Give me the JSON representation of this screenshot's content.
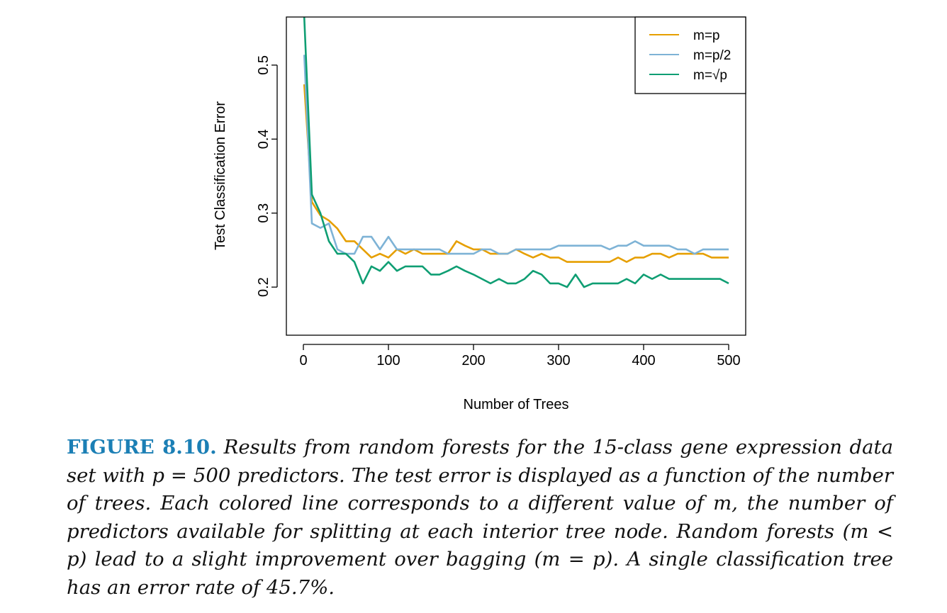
{
  "colors": {
    "m_eq_p": "#E69F00",
    "m_eq_p_half": "#7EB3D6",
    "m_eq_sqrt_p": "#0F9E73",
    "caption_label": "#1B7FB5"
  },
  "chart_data": {
    "type": "line",
    "title": "",
    "xlabel": "Number of Trees",
    "ylabel": "Test Classification Error",
    "xlim": [
      -20,
      520
    ],
    "ylim": [
      0.135,
      0.565
    ],
    "xticks": [
      0,
      100,
      200,
      300,
      400,
      500
    ],
    "yticks": [
      0.2,
      0.3,
      0.4,
      0.5
    ],
    "legend_position": "top-right",
    "grid": false,
    "x": [
      1,
      10,
      20,
      30,
      40,
      50,
      60,
      70,
      80,
      90,
      100,
      110,
      120,
      130,
      140,
      150,
      160,
      170,
      180,
      190,
      200,
      210,
      220,
      230,
      240,
      250,
      260,
      270,
      280,
      290,
      300,
      310,
      320,
      330,
      340,
      350,
      360,
      370,
      380,
      390,
      400,
      410,
      420,
      430,
      440,
      450,
      460,
      470,
      480,
      490,
      500
    ],
    "series": [
      {
        "name": "m=p",
        "color_key": "m_eq_p",
        "values": [
          0.474,
          0.315,
          0.297,
          0.29,
          0.279,
          0.262,
          0.262,
          0.251,
          0.24,
          0.245,
          0.24,
          0.251,
          0.245,
          0.251,
          0.245,
          0.245,
          0.245,
          0.245,
          0.262,
          0.256,
          0.251,
          0.251,
          0.245,
          0.245,
          0.245,
          0.251,
          0.245,
          0.24,
          0.245,
          0.24,
          0.24,
          0.234,
          0.234,
          0.234,
          0.234,
          0.234,
          0.234,
          0.24,
          0.234,
          0.24,
          0.24,
          0.245,
          0.245,
          0.24,
          0.245,
          0.245,
          0.245,
          0.245,
          0.24,
          0.24,
          0.24
        ]
      },
      {
        "name": "m=p/2",
        "color_key": "m_eq_p_half",
        "values": [
          0.514,
          0.286,
          0.28,
          0.286,
          0.251,
          0.245,
          0.245,
          0.268,
          0.268,
          0.251,
          0.268,
          0.251,
          0.251,
          0.251,
          0.251,
          0.251,
          0.251,
          0.245,
          0.245,
          0.245,
          0.245,
          0.251,
          0.251,
          0.245,
          0.245,
          0.251,
          0.251,
          0.251,
          0.251,
          0.251,
          0.256,
          0.256,
          0.256,
          0.256,
          0.256,
          0.256,
          0.251,
          0.256,
          0.256,
          0.262,
          0.256,
          0.256,
          0.256,
          0.256,
          0.251,
          0.251,
          0.245,
          0.251,
          0.251,
          0.251,
          0.251
        ]
      },
      {
        "name": "m=√p",
        "color_key": "m_eq_sqrt_p",
        "values": [
          0.565,
          0.325,
          0.3,
          0.262,
          0.245,
          0.245,
          0.234,
          0.205,
          0.228,
          0.222,
          0.234,
          0.222,
          0.228,
          0.228,
          0.228,
          0.217,
          0.217,
          0.222,
          0.228,
          0.222,
          0.217,
          0.211,
          0.205,
          0.211,
          0.205,
          0.205,
          0.211,
          0.222,
          0.217,
          0.205,
          0.205,
          0.2,
          0.217,
          0.2,
          0.205,
          0.205,
          0.205,
          0.205,
          0.211,
          0.205,
          0.217,
          0.211,
          0.217,
          0.211,
          0.211,
          0.211,
          0.211,
          0.211,
          0.211,
          0.211,
          0.205
        ]
      }
    ]
  },
  "caption": {
    "label": "FIGURE 8.10.",
    "text": "Results from random forests for the 15-class gene expression data set with p = 500 predictors. The test error is displayed as a function of the number of trees. Each colored line corresponds to a different value of m, the number of predictors available for splitting at each interior tree node. Random forests (m < p) lead to a slight improvement over bagging (m = p). A single classification tree has an error rate of 45.7%."
  }
}
